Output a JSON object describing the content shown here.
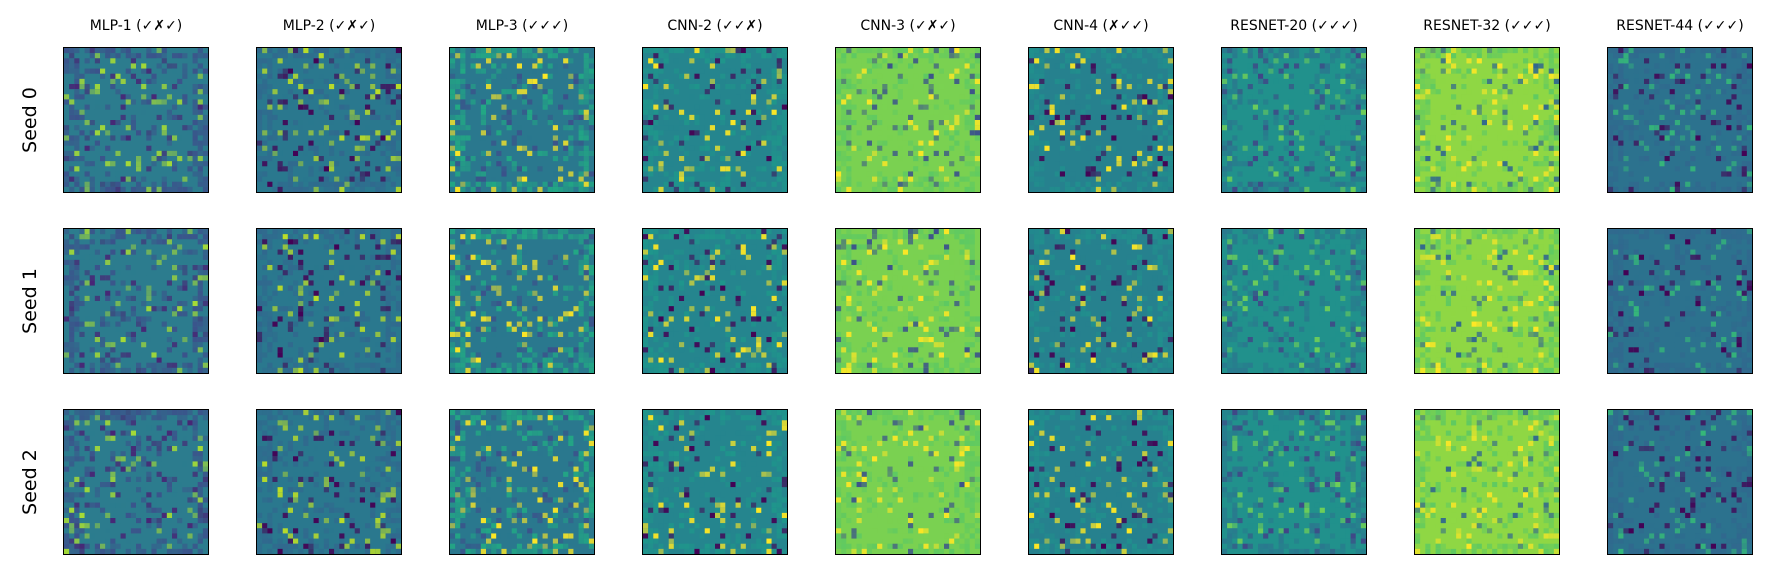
{
  "columns": [
    {
      "title": "MLP-1 (✓✗✓)",
      "colors": {
        "base": "#2c7c8e",
        "frame": "#3b538b",
        "bright": "#a5db36",
        "dark": "#482475"
      }
    },
    {
      "title": "MLP-2 (✓✗✓)",
      "colors": {
        "base": "#2a788e",
        "frame": "#31688e",
        "bright": "#bddf26",
        "dark": "#440154"
      }
    },
    {
      "title": "MLP-3 (✓✓✓)",
      "colors": {
        "base": "#2a788e",
        "frame": "#22a884",
        "bright": "#fde725",
        "dark": "#3b528b"
      }
    },
    {
      "title": "CNN-2 (✓✓✗)",
      "colors": {
        "base": "#25858e",
        "frame": "#1f968b",
        "bright": "#fde725",
        "dark": "#440154"
      }
    },
    {
      "title": "CNN-3 (✓✗✓)",
      "colors": {
        "base": "#7ad151",
        "frame": "#5ec962",
        "bright": "#fde725",
        "dark": "#3b528b"
      }
    },
    {
      "title": "CNN-4 (✗✓✓)",
      "colors": {
        "base": "#26818e",
        "frame": "#21908d",
        "bright": "#fde725",
        "dark": "#440154"
      }
    },
    {
      "title": "RESNET-20 (✓✓✓)",
      "colors": {
        "base": "#21918c",
        "frame": "#2a788e",
        "bright": "#6ece58",
        "dark": "#414487"
      }
    },
    {
      "title": "RESNET-32 (✓✓✓)",
      "colors": {
        "base": "#8fd744",
        "frame": "#5ec962",
        "bright": "#fde725",
        "dark": "#31688e"
      }
    },
    {
      "title": "RESNET-44 (✓✓✓)",
      "colors": {
        "base": "#2c728e",
        "frame": "#31688e",
        "bright": "#35b779",
        "dark": "#440154"
      }
    }
  ],
  "rows": [
    {
      "label": "Seed 0"
    },
    {
      "label": "Seed 1"
    },
    {
      "label": "Seed 2"
    }
  ]
}
